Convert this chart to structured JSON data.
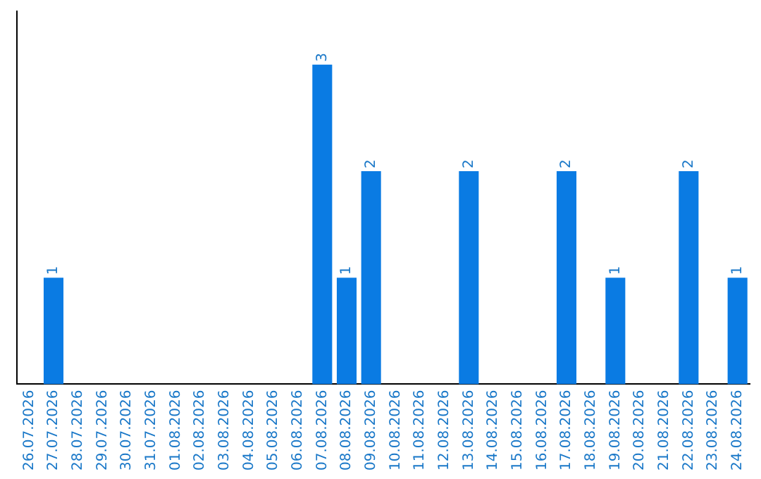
{
  "chart_data": {
    "type": "bar",
    "categories": [
      "26.07.2026",
      "27.07.2026",
      "28.07.2026",
      "29.07.2026",
      "30.07.2026",
      "31.07.2026",
      "01.08.2026",
      "02.08.2026",
      "03.08.2026",
      "04.08.2026",
      "05.08.2026",
      "06.08.2026",
      "07.08.2026",
      "08.08.2026",
      "09.08.2026",
      "10.08.2026",
      "11.08.2026",
      "12.08.2026",
      "13.08.2026",
      "14.08.2026",
      "15.08.2026",
      "16.08.2026",
      "17.08.2026",
      "18.08.2026",
      "19.08.2026",
      "20.08.2026",
      "21.08.2026",
      "22.08.2026",
      "23.08.2026",
      "24.08.2026"
    ],
    "values": [
      0,
      1,
      0,
      0,
      0,
      0,
      0,
      0,
      0,
      0,
      0,
      0,
      3,
      1,
      2,
      0,
      0,
      0,
      2,
      0,
      0,
      0,
      2,
      0,
      1,
      0,
      0,
      2,
      0,
      1
    ],
    "value_labels": [
      null,
      "1",
      null,
      null,
      null,
      null,
      null,
      null,
      null,
      null,
      null,
      null,
      "3",
      "1",
      "2",
      null,
      null,
      null,
      "2",
      null,
      null,
      null,
      "2",
      null,
      "1",
      null,
      null,
      "2",
      null,
      "1"
    ],
    "color": "#0a7be3",
    "tick_labels": "x",
    "grid": false,
    "legend": false
  }
}
